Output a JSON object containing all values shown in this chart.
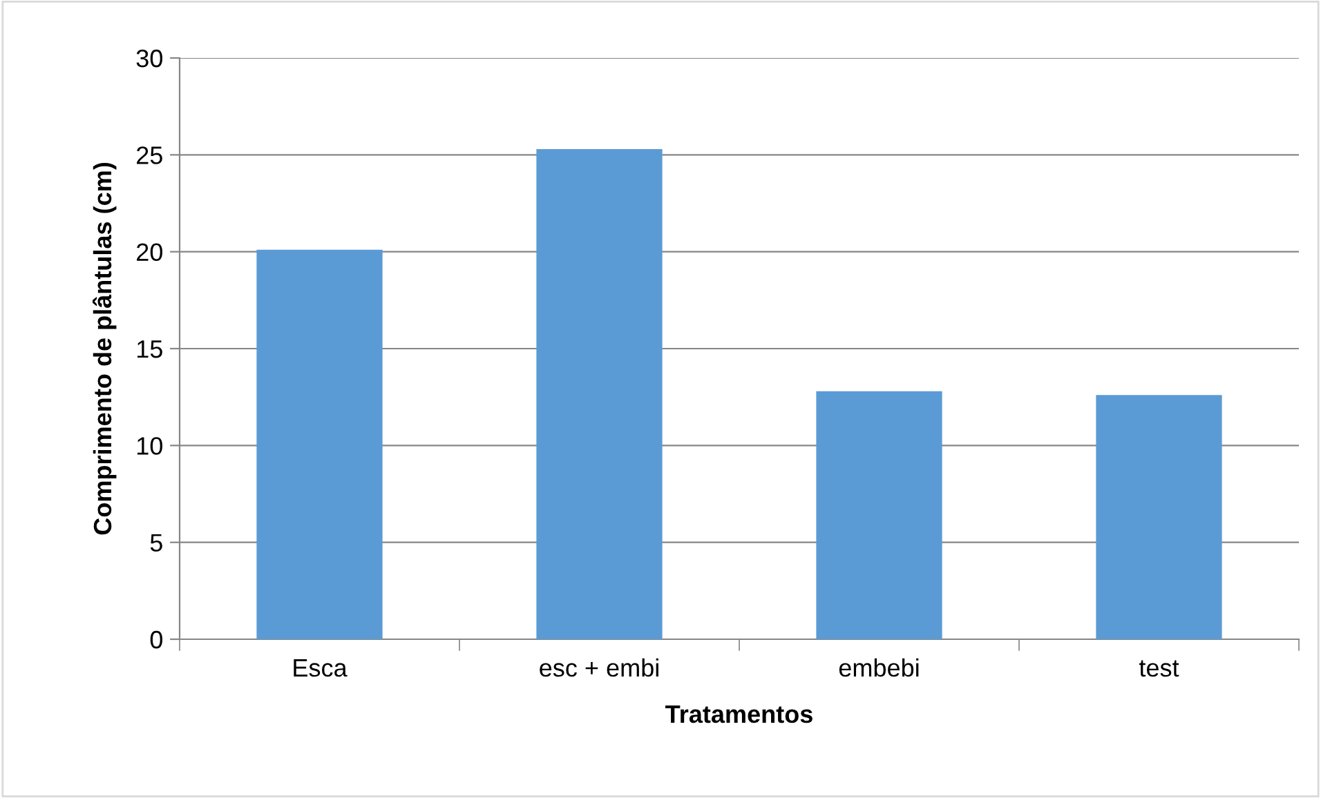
{
  "chart_data": {
    "type": "bar",
    "xlabel": "Tratamentos",
    "ylabel": "Comprimento de plântulas (cm)",
    "categories": [
      "Esca",
      "esc + embi",
      "embebi",
      "test"
    ],
    "series": [
      {
        "color": "#5b9bd5",
        "values": [
          20.1,
          25.3,
          12.8,
          12.6
        ]
      }
    ],
    "ylim": [
      0,
      30
    ],
    "yticks": [
      0,
      5,
      10,
      15,
      20,
      25,
      30
    ],
    "grid": "y",
    "legend": false
  }
}
